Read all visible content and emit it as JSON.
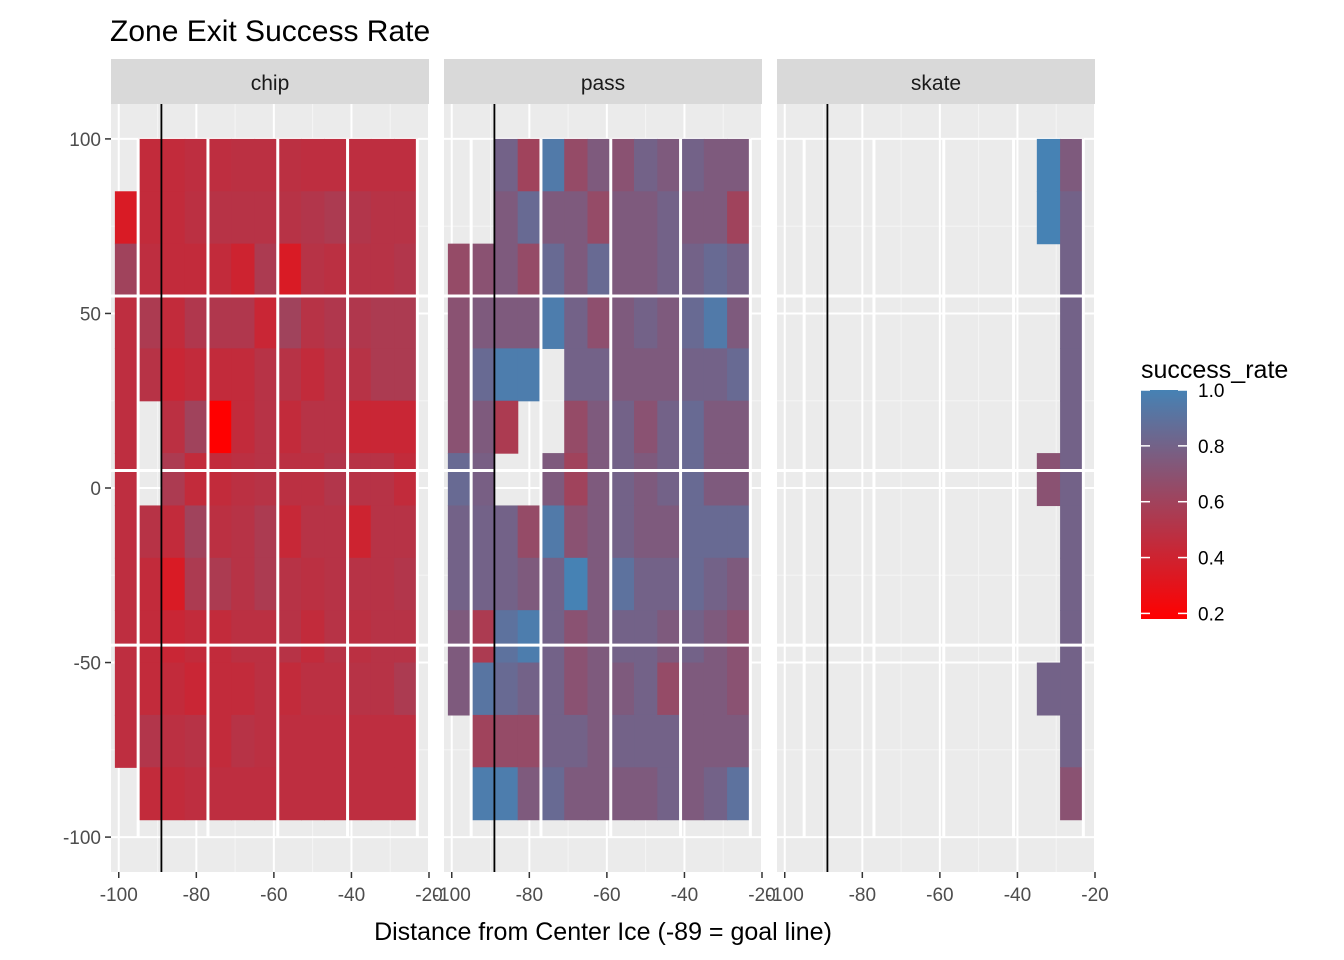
{
  "chart_data": {
    "type": "heatmap",
    "title": "Zone Exit Success Rate",
    "xlabel": "Distance from Center Ice (-89 = goal line)",
    "ylabel": "",
    "facets": [
      "chip",
      "pass",
      "skate"
    ],
    "xlim": [
      -102,
      -20
    ],
    "ylim": [
      -110,
      110
    ],
    "x_ticks": [
      -100,
      -80,
      -60,
      -40,
      -20
    ],
    "y_ticks": [
      100,
      50,
      0,
      -50,
      -100
    ],
    "reference_line_x": -89,
    "x_bins": [
      -98,
      -92,
      -86,
      -80,
      -74,
      -68,
      -62,
      -56,
      -50,
      -44,
      -38,
      -32,
      -26
    ],
    "y_bins": [
      92.5,
      77.5,
      62.5,
      47.5,
      32.5,
      17.5,
      2.5,
      -12.5,
      -27.5,
      -42.5,
      -57.5,
      -72.5,
      -87.5
    ],
    "bin_width": 6,
    "bin_height": 15,
    "color_scale": {
      "name": "success_rate",
      "low_color": "#FF0000",
      "high_color": "#4682B4",
      "min": 0.18,
      "max": 1.0,
      "ticks": [
        0.2,
        0.4,
        0.6,
        0.8,
        1.0
      ],
      "tick_labels": [
        "0.2",
        "0.4",
        "0.6",
        "0.8",
        "1.0"
      ]
    },
    "grids": {
      "chip": [
        [
          null,
          0.45,
          0.45,
          0.47,
          0.47,
          0.48,
          0.48,
          0.48,
          0.47,
          0.47,
          0.47,
          0.47,
          0.47
        ],
        [
          0.35,
          0.45,
          0.45,
          0.48,
          0.5,
          0.5,
          0.5,
          0.5,
          0.52,
          0.55,
          0.52,
          0.5,
          0.5
        ],
        [
          0.6,
          0.47,
          0.45,
          0.45,
          0.45,
          0.4,
          0.55,
          0.35,
          0.5,
          0.48,
          0.5,
          0.5,
          0.52
        ],
        [
          0.47,
          0.55,
          0.45,
          0.53,
          0.53,
          0.53,
          0.42,
          0.6,
          0.5,
          0.53,
          0.53,
          0.55,
          0.55
        ],
        [
          0.47,
          0.5,
          0.42,
          0.45,
          0.45,
          0.45,
          0.5,
          0.5,
          0.45,
          0.5,
          0.5,
          0.55,
          0.55
        ],
        [
          0.47,
          null,
          0.48,
          0.6,
          0.18,
          0.45,
          0.5,
          0.45,
          0.5,
          0.5,
          0.42,
          0.42,
          0.42
        ],
        [
          0.47,
          null,
          0.55,
          0.45,
          0.45,
          0.48,
          0.5,
          0.48,
          0.48,
          0.52,
          0.5,
          0.5,
          0.45
        ],
        [
          0.47,
          0.5,
          0.45,
          0.6,
          0.48,
          0.5,
          0.55,
          0.43,
          0.5,
          0.5,
          0.4,
          0.5,
          0.5
        ],
        [
          0.47,
          0.45,
          0.35,
          0.55,
          0.55,
          0.5,
          0.55,
          0.5,
          0.48,
          0.5,
          0.5,
          0.5,
          0.52
        ],
        [
          0.47,
          0.45,
          0.42,
          0.45,
          0.45,
          0.48,
          0.48,
          0.5,
          0.45,
          0.5,
          0.48,
          0.5,
          0.5
        ],
        [
          0.47,
          0.45,
          0.45,
          0.42,
          0.45,
          0.45,
          0.48,
          0.45,
          0.48,
          0.48,
          0.5,
          0.5,
          0.55
        ],
        [
          0.47,
          0.52,
          0.48,
          0.5,
          0.45,
          0.5,
          0.48,
          0.47,
          0.47,
          0.47,
          0.47,
          0.47,
          0.47
        ],
        [
          null,
          0.45,
          0.45,
          0.47,
          0.47,
          0.47,
          0.47,
          0.47,
          0.47,
          0.47,
          0.47,
          0.47,
          0.47
        ]
      ],
      "pass": [
        [
          null,
          null,
          0.8,
          0.6,
          0.95,
          0.65,
          0.75,
          0.7,
          0.8,
          0.75,
          0.8,
          0.75,
          0.75
        ],
        [
          null,
          null,
          0.75,
          0.85,
          0.75,
          0.75,
          0.65,
          0.75,
          0.75,
          0.8,
          0.75,
          0.75,
          0.6
        ],
        [
          0.65,
          0.7,
          0.75,
          0.65,
          0.85,
          0.75,
          0.85,
          0.75,
          0.75,
          0.8,
          0.8,
          0.85,
          0.8
        ],
        [
          0.7,
          0.75,
          0.75,
          0.75,
          0.97,
          0.8,
          0.68,
          0.75,
          0.8,
          0.75,
          0.85,
          0.95,
          0.75
        ],
        [
          0.7,
          0.85,
          0.97,
          0.97,
          null,
          0.8,
          0.8,
          0.75,
          0.75,
          0.75,
          0.8,
          0.8,
          0.85
        ],
        [
          0.7,
          0.75,
          0.55,
          null,
          null,
          0.65,
          0.75,
          0.8,
          0.7,
          0.8,
          0.85,
          0.75,
          0.75
        ],
        [
          0.85,
          0.78,
          null,
          null,
          0.75,
          0.6,
          0.75,
          0.8,
          0.75,
          0.8,
          0.85,
          0.75,
          0.75
        ],
        [
          0.8,
          0.8,
          0.8,
          0.65,
          0.95,
          0.7,
          0.75,
          0.8,
          0.75,
          0.75,
          0.85,
          0.85,
          0.85
        ],
        [
          0.8,
          0.8,
          0.8,
          0.75,
          0.8,
          1.0,
          0.75,
          0.9,
          0.8,
          0.8,
          0.85,
          0.8,
          0.75
        ],
        [
          0.75,
          0.55,
          0.9,
          0.97,
          0.8,
          0.7,
          0.75,
          0.8,
          0.8,
          0.75,
          0.8,
          0.75,
          0.7
        ],
        [
          0.75,
          0.92,
          0.85,
          0.8,
          0.8,
          0.7,
          0.75,
          0.75,
          0.8,
          0.65,
          0.75,
          0.75,
          0.7
        ],
        [
          null,
          0.6,
          0.65,
          0.65,
          0.8,
          0.8,
          0.75,
          0.8,
          0.8,
          0.8,
          0.75,
          0.75,
          0.75
        ],
        [
          null,
          0.97,
          0.97,
          0.75,
          0.85,
          0.75,
          0.75,
          0.75,
          0.75,
          0.8,
          0.75,
          0.8,
          0.9
        ]
      ],
      "skate": [
        [
          null,
          null,
          null,
          null,
          null,
          null,
          null,
          null,
          null,
          null,
          null,
          1.0,
          0.75
        ],
        [
          null,
          null,
          null,
          null,
          null,
          null,
          null,
          null,
          null,
          null,
          null,
          1.0,
          0.8
        ],
        [
          null,
          null,
          null,
          null,
          null,
          null,
          null,
          null,
          null,
          null,
          null,
          null,
          0.8
        ],
        [
          null,
          null,
          null,
          null,
          null,
          null,
          null,
          null,
          null,
          null,
          null,
          null,
          0.8
        ],
        [
          null,
          null,
          null,
          null,
          null,
          null,
          null,
          null,
          null,
          null,
          null,
          null,
          0.8
        ],
        [
          null,
          null,
          null,
          null,
          null,
          null,
          null,
          null,
          null,
          null,
          null,
          null,
          0.8
        ],
        [
          null,
          null,
          null,
          null,
          null,
          null,
          null,
          null,
          null,
          null,
          null,
          0.7,
          0.8
        ],
        [
          null,
          null,
          null,
          null,
          null,
          null,
          null,
          null,
          null,
          null,
          null,
          null,
          0.8
        ],
        [
          null,
          null,
          null,
          null,
          null,
          null,
          null,
          null,
          null,
          null,
          null,
          null,
          0.8
        ],
        [
          null,
          null,
          null,
          null,
          null,
          null,
          null,
          null,
          null,
          null,
          null,
          null,
          0.8
        ],
        [
          null,
          null,
          null,
          null,
          null,
          null,
          null,
          null,
          null,
          null,
          null,
          0.8,
          0.8
        ],
        [
          null,
          null,
          null,
          null,
          null,
          null,
          null,
          null,
          null,
          null,
          null,
          null,
          0.8
        ],
        [
          null,
          null,
          null,
          null,
          null,
          null,
          null,
          null,
          null,
          null,
          null,
          null,
          0.7
        ]
      ]
    }
  }
}
